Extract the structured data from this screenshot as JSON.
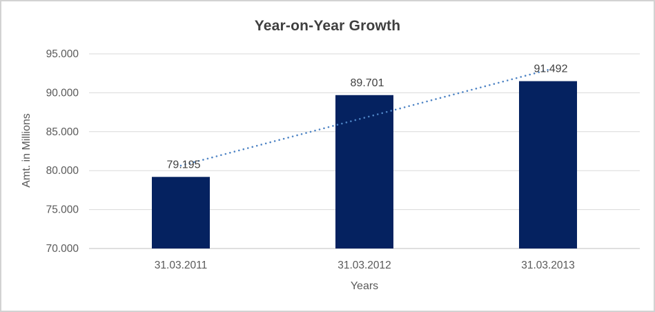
{
  "chart_data": {
    "type": "bar",
    "title": "Year-on-Year Growth",
    "xlabel": "Years",
    "ylabel": "Amt. in Millions",
    "categories": [
      "31.03.2011",
      "31.03.2012",
      "31.03.2013"
    ],
    "values": [
      79195,
      89701,
      91492
    ],
    "data_labels": [
      "79.195",
      "89.701",
      "91.492"
    ],
    "y_ticks": [
      {
        "value": 70000,
        "label": "70.000"
      },
      {
        "value": 75000,
        "label": "75.000"
      },
      {
        "value": 80000,
        "label": "80.000"
      },
      {
        "value": 85000,
        "label": "85.000"
      },
      {
        "value": 90000,
        "label": "90.000"
      },
      {
        "value": 95000,
        "label": "95.000"
      }
    ],
    "ylim": [
      70000,
      95000
    ],
    "grid": true,
    "legend": "none",
    "trendline": {
      "type": "linear",
      "style": "dotted",
      "color": "#4d83c4"
    },
    "colors": {
      "bar": "#052260",
      "gridline": "#d9d9d9",
      "axis_line": "#bfbfbf",
      "title_text": "#3f3f3f",
      "axis_text": "#595959",
      "data_label_text": "#404040",
      "background": "#ffffff",
      "frame_border": "#d2d2d2"
    }
  }
}
